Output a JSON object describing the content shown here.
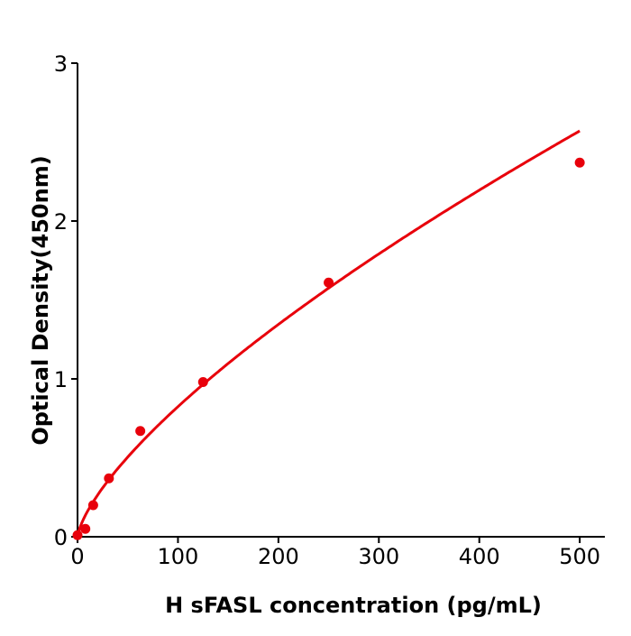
{
  "chart_data": {
    "type": "scatter",
    "title": "",
    "xlabel": "H  sFASL concentration (pg/mL)",
    "ylabel": "Optical Density(450nm)",
    "xlim": [
      0,
      525
    ],
    "ylim": [
      0,
      3
    ],
    "xticks": [
      0,
      100,
      200,
      300,
      400,
      500
    ],
    "yticks": [
      0,
      1,
      2,
      3
    ],
    "grid": false,
    "color": "#e8000b",
    "points": {
      "x": [
        0,
        7.8,
        15.6,
        31.25,
        62.5,
        125,
        250,
        500
      ],
      "y": [
        0.01,
        0.05,
        0.2,
        0.37,
        0.67,
        0.98,
        1.61,
        2.37
      ]
    },
    "fit_curve": true
  }
}
